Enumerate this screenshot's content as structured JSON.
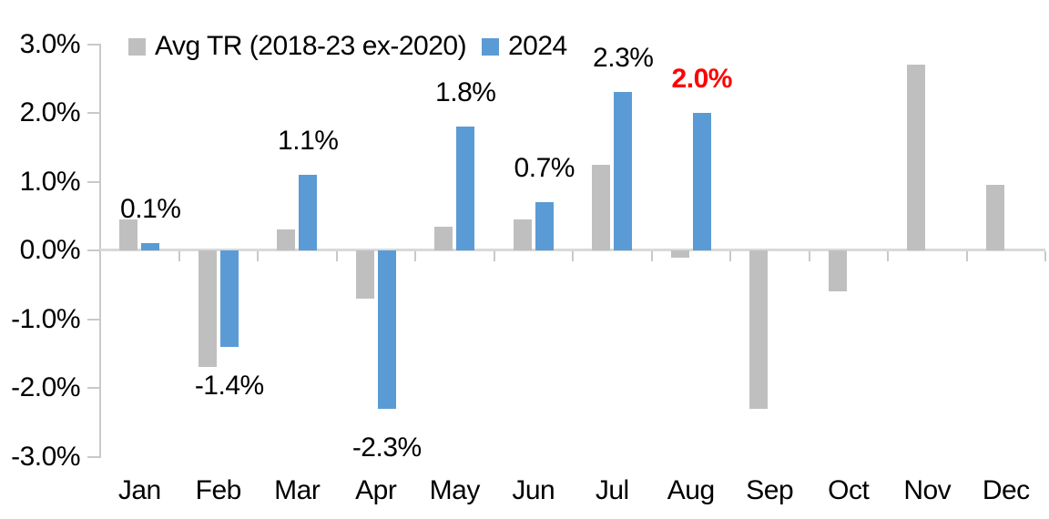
{
  "chart_data": {
    "type": "bar",
    "title": "",
    "xlabel": "",
    "ylabel": "",
    "categories": [
      "Jan",
      "Feb",
      "Mar",
      "Apr",
      "May",
      "Jun",
      "Jul",
      "Aug",
      "Sep",
      "Oct",
      "Nov",
      "Dec"
    ],
    "series": [
      {
        "name": "Avg TR (2018-23 ex-2020)",
        "color": "#bfbfbf",
        "values": [
          0.45,
          -1.7,
          0.3,
          -0.7,
          0.35,
          0.45,
          1.25,
          -0.1,
          -2.3,
          -0.6,
          2.7,
          0.95
        ]
      },
      {
        "name": "2024",
        "color": "#5b9bd5",
        "values": [
          0.1,
          -1.4,
          1.1,
          -2.3,
          1.8,
          0.7,
          2.3,
          2.0,
          null,
          null,
          null,
          null
        ],
        "data_labels": [
          {
            "text": "0.1%",
            "color": "#000000",
            "bold": false
          },
          {
            "text": "-1.4%",
            "color": "#000000",
            "bold": false
          },
          {
            "text": "1.1%",
            "color": "#000000",
            "bold": false
          },
          {
            "text": "-2.3%",
            "color": "#000000",
            "bold": false
          },
          {
            "text": "1.8%",
            "color": "#000000",
            "bold": false
          },
          {
            "text": "0.7%",
            "color": "#000000",
            "bold": false
          },
          {
            "text": "2.3%",
            "color": "#000000",
            "bold": false
          },
          {
            "text": "2.0%",
            "color": "#ff0000",
            "bold": true
          }
        ]
      }
    ],
    "y_ticks": [
      "3.0%",
      "2.0%",
      "1.0%",
      "0.0%",
      "-1.0%",
      "-2.0%",
      "-3.0%"
    ],
    "y_tick_values": [
      3,
      2,
      1,
      0,
      -1,
      -2,
      -3
    ],
    "ylim": [
      -3,
      3
    ],
    "grid": false,
    "legend_position": "top",
    "axis_color": "#c9c9c9",
    "zero_line_color": "#d9d9d9",
    "text_color": "#000000"
  }
}
